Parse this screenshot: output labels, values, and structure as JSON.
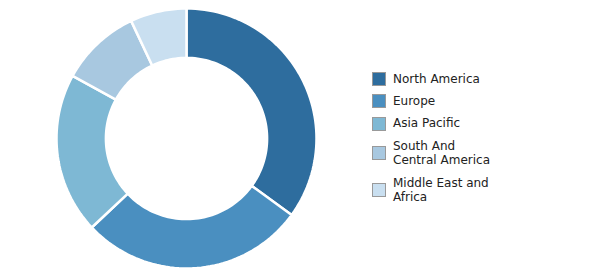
{
  "chart_data": {
    "type": "donut",
    "categories": [
      "North America",
      "Europe",
      "Asia Pacific",
      "South And\nCentral America",
      "Middle East and\nAfrica"
    ],
    "values": [
      35,
      28,
      20,
      10,
      7
    ],
    "colors": [
      "#2e6d9e",
      "#4a8fc0",
      "#7eb8d4",
      "#a8c8e0",
      "#c9dff0"
    ],
    "legend": "right"
  }
}
